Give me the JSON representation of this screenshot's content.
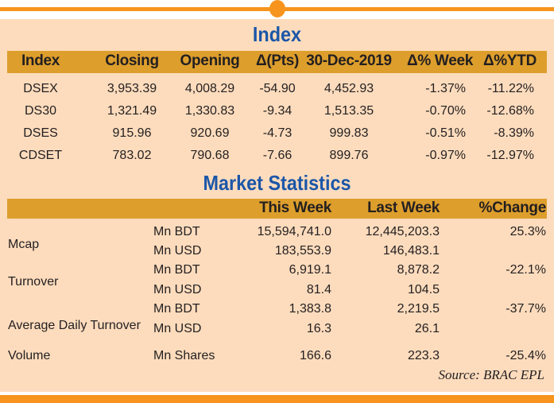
{
  "index_section": {
    "title": "Index",
    "headers": [
      "Index",
      "Closing",
      "Opening",
      "Δ(Pts)",
      "30-Dec-2019",
      "Δ% Week",
      "Δ%YTD"
    ],
    "rows": [
      [
        "DSEX",
        "3,953.39",
        "4,008.29",
        "-54.90",
        "4,452.93",
        "-1.37%",
        "-11.22%"
      ],
      [
        "DS30",
        "1,321.49",
        "1,330.83",
        "-9.34",
        "1,513.35",
        "-0.70%",
        "-12.68%"
      ],
      [
        "DSES",
        "915.96",
        "920.69",
        "-4.73",
        "999.83",
        "-0.51%",
        "-8.39%"
      ],
      [
        "CDSET",
        "783.02",
        "790.68",
        "-7.66",
        "899.76",
        "-0.97%",
        "-12.97%"
      ]
    ]
  },
  "market_section": {
    "title": "Market Statistics",
    "headers": [
      "This Week",
      "Last Week",
      "%Change"
    ],
    "groups": [
      {
        "label": "Mcap",
        "rows": [
          [
            "Mn BDT",
            "15,594,741.0",
            "12,445,203.3",
            "25.3%"
          ],
          [
            "Mn USD",
            "183,553.9",
            "146,483.1",
            ""
          ]
        ]
      },
      {
        "label": "Turnover",
        "rows": [
          [
            "Mn BDT",
            "6,919.1",
            "8,878.2",
            "-22.1%"
          ],
          [
            "Mn USD",
            "81.4",
            "104.5",
            ""
          ]
        ]
      },
      {
        "label": "Average Daily Turnover",
        "rows": [
          [
            "Mn BDT",
            "1,383.8",
            "2,219.5",
            "-37.7%"
          ],
          [
            "Mn USD",
            "16.3",
            "26.1",
            ""
          ]
        ]
      },
      {
        "label": "Volume",
        "rows": [
          [
            "Mn Shares",
            "166.6",
            "223.3",
            "-25.4%"
          ]
        ]
      }
    ],
    "source": "Source: BRAC EPL"
  },
  "colors": {
    "accent": "#f7941d",
    "panel": "#fddcbd",
    "header_bar": "#dd9e2c",
    "title": "#1b56a8"
  }
}
